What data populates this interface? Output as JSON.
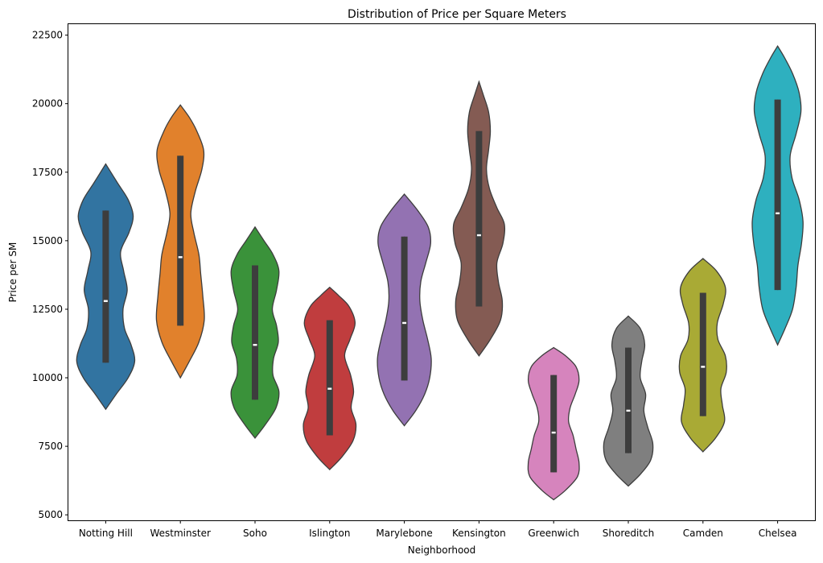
{
  "chart_data": {
    "type": "violin",
    "title": "Distribution of Price per Square Meters",
    "xlabel": "Neighborhood",
    "ylabel": "Price per SM",
    "ylim": [
      4800,
      22900
    ],
    "yticks": [
      5000,
      7500,
      10000,
      12500,
      15000,
      17500,
      20000,
      22500
    ],
    "grid": false,
    "categories": [
      "Notting Hill",
      "Westminster",
      "Soho",
      "Islington",
      "Marylebone",
      "Kensington",
      "Greenwich",
      "Shoreditch",
      "Camden",
      "Chelsea"
    ],
    "series": [
      {
        "category": "Notting Hill",
        "color": "#3274a1",
        "min": 8850,
        "max": 17800,
        "q1": 10550,
        "median": 12800,
        "q3": 16100,
        "whisker_low": 10550,
        "whisker_high": 16100,
        "density": [
          [
            8850,
            0
          ],
          [
            9400,
            0.35
          ],
          [
            10000,
            0.75
          ],
          [
            10600,
            0.97
          ],
          [
            11200,
            0.85
          ],
          [
            11800,
            0.63
          ],
          [
            12500,
            0.58
          ],
          [
            13200,
            0.72
          ],
          [
            13900,
            0.6
          ],
          [
            14600,
            0.5
          ],
          [
            15300,
            0.78
          ],
          [
            15900,
            0.92
          ],
          [
            16500,
            0.75
          ],
          [
            17100,
            0.4
          ],
          [
            17800,
            0
          ]
        ]
      },
      {
        "category": "Westminster",
        "color": "#e1812c",
        "min": 10000,
        "max": 19950,
        "q1": 11900,
        "median": 14400,
        "q3": 18100,
        "whisker_low": 11900,
        "whisker_high": 18100,
        "density": [
          [
            10000,
            0
          ],
          [
            10600,
            0.3
          ],
          [
            11300,
            0.62
          ],
          [
            12100,
            0.8
          ],
          [
            13000,
            0.75
          ],
          [
            13800,
            0.68
          ],
          [
            14500,
            0.62
          ],
          [
            15300,
            0.45
          ],
          [
            16000,
            0.35
          ],
          [
            16800,
            0.5
          ],
          [
            17600,
            0.72
          ],
          [
            18300,
            0.78
          ],
          [
            19000,
            0.55
          ],
          [
            19500,
            0.3
          ],
          [
            19950,
            0
          ]
        ]
      },
      {
        "category": "Soho",
        "color": "#3a923a",
        "min": 7800,
        "max": 15500,
        "q1": 9200,
        "median": 11200,
        "q3": 14100,
        "whisker_low": 9200,
        "whisker_high": 14100,
        "density": [
          [
            7800,
            0
          ],
          [
            8300,
            0.35
          ],
          [
            8900,
            0.7
          ],
          [
            9500,
            0.8
          ],
          [
            10100,
            0.6
          ],
          [
            10700,
            0.62
          ],
          [
            11300,
            0.78
          ],
          [
            11900,
            0.72
          ],
          [
            12500,
            0.58
          ],
          [
            13200,
            0.72
          ],
          [
            13900,
            0.8
          ],
          [
            14500,
            0.6
          ],
          [
            15000,
            0.3
          ],
          [
            15500,
            0
          ]
        ]
      },
      {
        "category": "Islington",
        "color": "#c03d3e",
        "min": 6650,
        "max": 13300,
        "q1": 7900,
        "median": 9600,
        "q3": 12100,
        "whisker_low": 7900,
        "whisker_high": 12100,
        "density": [
          [
            6650,
            0
          ],
          [
            7100,
            0.4
          ],
          [
            7700,
            0.78
          ],
          [
            8300,
            0.88
          ],
          [
            8900,
            0.72
          ],
          [
            9500,
            0.8
          ],
          [
            10100,
            0.7
          ],
          [
            10800,
            0.5
          ],
          [
            11400,
            0.68
          ],
          [
            12000,
            0.85
          ],
          [
            12600,
            0.65
          ],
          [
            13000,
            0.3
          ],
          [
            13300,
            0
          ]
        ]
      },
      {
        "category": "Marylebone",
        "color": "#9372b2",
        "min": 8250,
        "max": 16700,
        "q1": 9900,
        "median": 12000,
        "q3": 15150,
        "whisker_low": 9900,
        "whisker_high": 15150,
        "density": [
          [
            8250,
            0
          ],
          [
            8800,
            0.38
          ],
          [
            9400,
            0.68
          ],
          [
            10000,
            0.85
          ],
          [
            10700,
            0.9
          ],
          [
            11400,
            0.78
          ],
          [
            12100,
            0.62
          ],
          [
            12800,
            0.52
          ],
          [
            13500,
            0.55
          ],
          [
            14200,
            0.72
          ],
          [
            14900,
            0.88
          ],
          [
            15500,
            0.8
          ],
          [
            16100,
            0.45
          ],
          [
            16700,
            0
          ]
        ]
      },
      {
        "category": "Kensington",
        "color": "#845b53",
        "min": 10800,
        "max": 20800,
        "q1": 12600,
        "median": 15200,
        "q3": 19000,
        "whisker_low": 12600,
        "whisker_high": 19000,
        "density": [
          [
            10800,
            0
          ],
          [
            11400,
            0.38
          ],
          [
            12100,
            0.72
          ],
          [
            12800,
            0.78
          ],
          [
            13500,
            0.65
          ],
          [
            14200,
            0.6
          ],
          [
            14900,
            0.8
          ],
          [
            15600,
            0.85
          ],
          [
            16200,
            0.6
          ],
          [
            16900,
            0.35
          ],
          [
            17600,
            0.25
          ],
          [
            18300,
            0.32
          ],
          [
            19000,
            0.38
          ],
          [
            19700,
            0.32
          ],
          [
            20300,
            0.15
          ],
          [
            20800,
            0
          ]
        ]
      },
      {
        "category": "Greenwich",
        "color": "#d684bd",
        "min": 5550,
        "max": 11100,
        "q1": 6550,
        "median": 8000,
        "q3": 10100,
        "whisker_low": 6550,
        "whisker_high": 10100,
        "density": [
          [
            5550,
            0
          ],
          [
            5900,
            0.4
          ],
          [
            6400,
            0.8
          ],
          [
            6900,
            0.85
          ],
          [
            7400,
            0.75
          ],
          [
            7900,
            0.65
          ],
          [
            8400,
            0.5
          ],
          [
            8900,
            0.55
          ],
          [
            9400,
            0.72
          ],
          [
            9900,
            0.85
          ],
          [
            10400,
            0.75
          ],
          [
            10800,
            0.4
          ],
          [
            11100,
            0
          ]
        ]
      },
      {
        "category": "Shoreditch",
        "color": "#7f7f7f",
        "min": 6050,
        "max": 12250,
        "q1": 7250,
        "median": 8800,
        "q3": 11100,
        "whisker_low": 7250,
        "whisker_high": 11100,
        "density": [
          [
            6050,
            0
          ],
          [
            6500,
            0.42
          ],
          [
            7000,
            0.75
          ],
          [
            7600,
            0.82
          ],
          [
            8200,
            0.65
          ],
          [
            8800,
            0.52
          ],
          [
            9400,
            0.58
          ],
          [
            10000,
            0.4
          ],
          [
            10600,
            0.45
          ],
          [
            11200,
            0.55
          ],
          [
            11800,
            0.4
          ],
          [
            12250,
            0
          ]
        ]
      },
      {
        "category": "Camden",
        "color": "#a9aa35",
        "min": 7300,
        "max": 14350,
        "q1": 8600,
        "median": 10400,
        "q3": 13100,
        "whisker_low": 8600,
        "whisker_high": 13100,
        "density": [
          [
            7300,
            0
          ],
          [
            7800,
            0.42
          ],
          [
            8400,
            0.72
          ],
          [
            9000,
            0.65
          ],
          [
            9600,
            0.6
          ],
          [
            10200,
            0.78
          ],
          [
            10800,
            0.75
          ],
          [
            11400,
            0.5
          ],
          [
            12000,
            0.48
          ],
          [
            12700,
            0.68
          ],
          [
            13300,
            0.75
          ],
          [
            13900,
            0.45
          ],
          [
            14350,
            0
          ]
        ]
      },
      {
        "category": "Chelsea",
        "color": "#2eb0bf",
        "min": 11200,
        "max": 22100,
        "q1": 13200,
        "median": 16000,
        "q3": 20150,
        "whisker_low": 13200,
        "whisker_high": 20150,
        "density": [
          [
            11200,
            0
          ],
          [
            11800,
            0.25
          ],
          [
            12500,
            0.5
          ],
          [
            13300,
            0.62
          ],
          [
            14100,
            0.68
          ],
          [
            14900,
            0.8
          ],
          [
            15700,
            0.85
          ],
          [
            16500,
            0.72
          ],
          [
            17300,
            0.48
          ],
          [
            18100,
            0.42
          ],
          [
            18900,
            0.62
          ],
          [
            19700,
            0.78
          ],
          [
            20400,
            0.72
          ],
          [
            21100,
            0.5
          ],
          [
            21700,
            0.22
          ],
          [
            22100,
            0
          ]
        ]
      }
    ]
  }
}
